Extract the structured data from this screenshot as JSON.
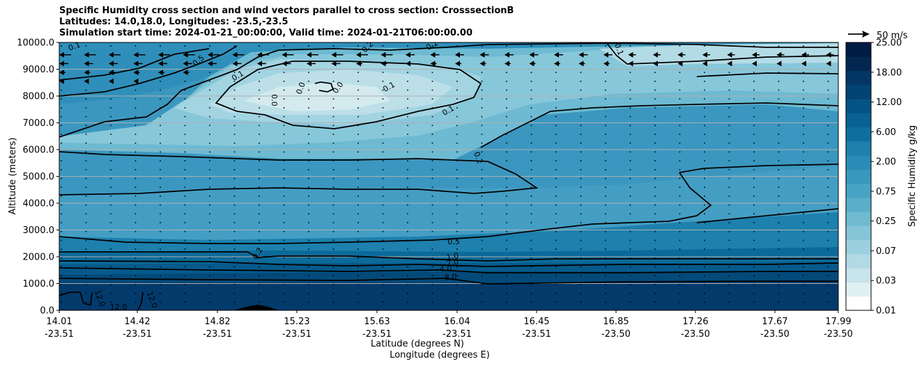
{
  "title_lines": [
    "Specific Humidity cross section and wind vectors parallel to cross section: CrosssectionB",
    "Latitudes: 14.0,18.0, Longitudes: -23.5,-23.5",
    "Simulation start time: 2024-01-21_00:00:00, Valid time: 2024-01-21T06:00:00.00"
  ],
  "chart_data": {
    "type": "heatmap",
    "ylabel": "Altitude (meters)",
    "xlabel_lat": "Latitude (degrees N)",
    "xlabel_lon": "Longitude (degrees E)",
    "ylim": [
      0,
      10000
    ],
    "yticks": [
      "0.0",
      "1000.0",
      "2000.0",
      "3000.0",
      "4000.0",
      "5000.0",
      "6000.0",
      "7000.0",
      "8000.0",
      "9000.0",
      "10000.0"
    ],
    "xticks_lat": [
      "14.01",
      "14.42",
      "14.82",
      "15.23",
      "15.63",
      "16.04",
      "16.45",
      "16.85",
      "17.26",
      "17.67",
      "17.99"
    ],
    "xticks_lon": [
      "-23.51",
      "-23.51",
      "-23.51",
      "-23.51",
      "-23.51",
      "-23.51",
      "-23.51",
      "-23.50",
      "-23.50",
      "-23.50",
      "-23.50"
    ],
    "grid": "horizontal",
    "colorbar": {
      "label": "Specific Humidity g/kg",
      "ticks": [
        "0.01",
        "0.03",
        "0.07",
        "0.25",
        "0.75",
        "2.00",
        "6.00",
        "12.00",
        "18.00",
        "25.00"
      ],
      "colors": [
        "#ffffff",
        "#e0f0f3",
        "#c8e4ec",
        "#b2dae5",
        "#9cd0de",
        "#86c5d7",
        "#70bbd0",
        "#5aaec9",
        "#48a4c4",
        "#3a98be",
        "#2a8cb6",
        "#1d80ad",
        "#0f70a0",
        "#096293",
        "#045384",
        "#034474",
        "#033664",
        "#022852",
        "#011c44"
      ]
    },
    "quiver_key": "50 m/s",
    "contour_labels": [
      "0.1",
      "0.5",
      "0.1",
      "0.2",
      "0.2",
      "0.1",
      "0.1",
      "0.0",
      "0.0",
      "0.0",
      "0.1",
      "0.2",
      "0.5",
      "0.2",
      "1.0",
      "2.0",
      "4.0",
      "8.0",
      "12.0",
      "12.0",
      "12.0"
    ]
  }
}
